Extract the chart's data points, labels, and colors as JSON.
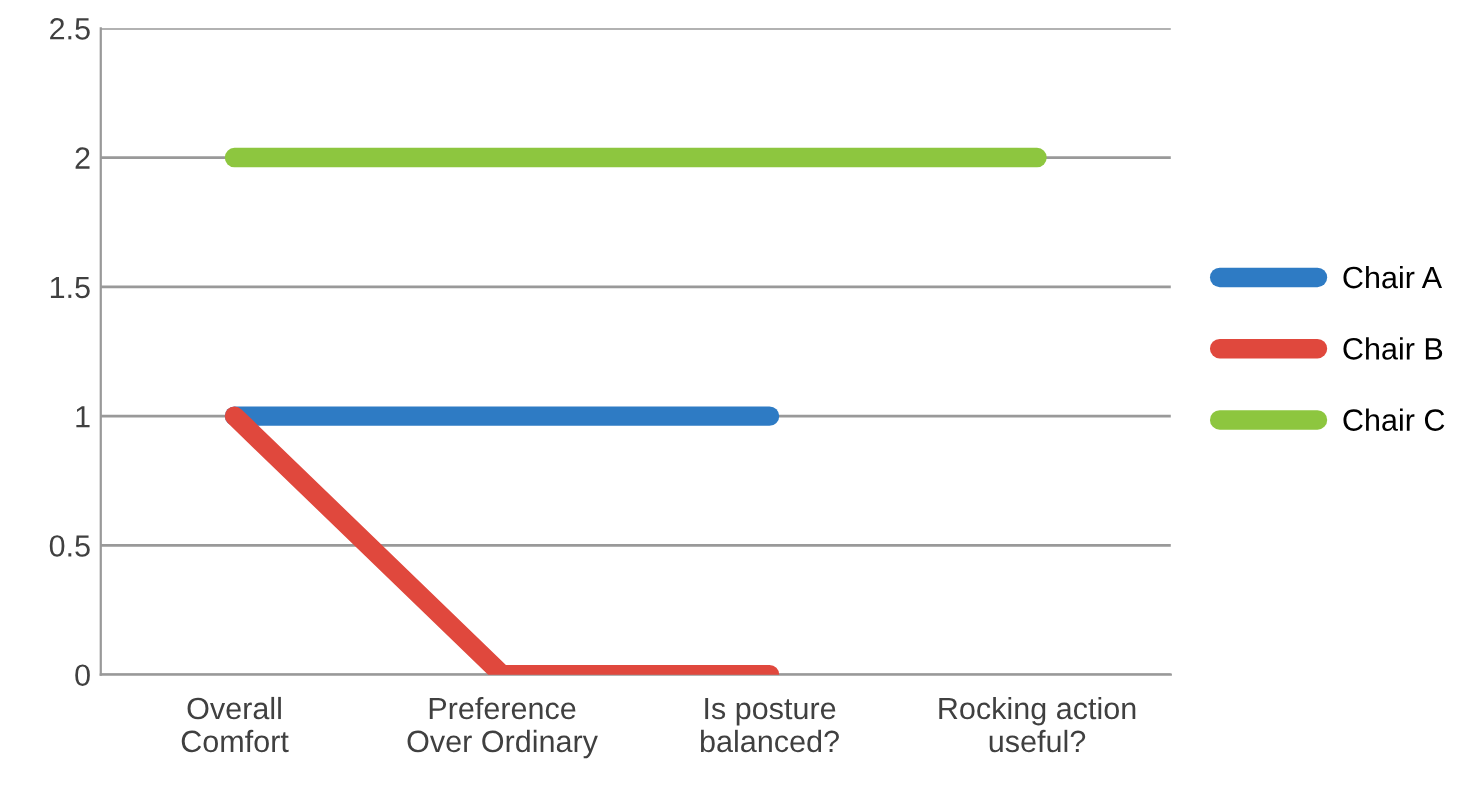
{
  "chart_data": {
    "type": "line",
    "categories": [
      "Overall\nComfort",
      "Preference\nOver Ordinary",
      "Is posture\nbalanced?",
      "Rocking action\nuseful?"
    ],
    "series": [
      {
        "name": "Chair A",
        "color": "#2e7bc4",
        "values": [
          1,
          1,
          1,
          null
        ]
      },
      {
        "name": "Chair B",
        "color": "#e0483d",
        "values": [
          1,
          0,
          0,
          null
        ]
      },
      {
        "name": "Chair C",
        "color": "#8dc63f",
        "values": [
          2,
          2,
          2,
          2
        ]
      }
    ],
    "ylim": [
      0,
      2.5
    ],
    "yticks": [
      0,
      0.5,
      1,
      1.5,
      2,
      2.5
    ],
    "grid": "y",
    "legend": "right",
    "marker": "none",
    "line_style": "solid"
  }
}
